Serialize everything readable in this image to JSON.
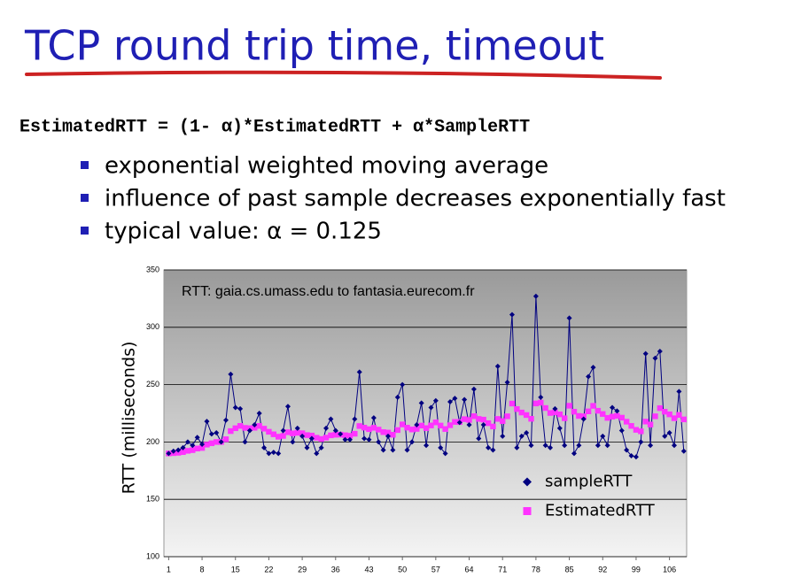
{
  "title": "TCP round trip time, timeout",
  "formula": "EstimatedRTT = (1- α)*EstimatedRTT + α*SampleRTT",
  "bullets": [
    "exponential weighted moving average",
    "influence of past sample decreases exponentially fast",
    "typical value: α  = 0.125"
  ],
  "chart_data": {
    "type": "scatter",
    "annotation": "RTT: gaia.cs.umass.edu to fantasia.eurecom.fr",
    "y_label": "RTT (milliseconds)",
    "x": [
      1,
      2,
      3,
      4,
      5,
      6,
      7,
      8,
      9,
      10,
      11,
      12,
      13,
      14,
      15,
      16,
      17,
      18,
      19,
      20,
      21,
      22,
      23,
      24,
      25,
      26,
      27,
      28,
      29,
      30,
      31,
      32,
      33,
      34,
      35,
      36,
      37,
      38,
      39,
      40,
      41,
      42,
      43,
      44,
      45,
      46,
      47,
      48,
      49,
      50,
      51,
      52,
      53,
      54,
      55,
      56,
      57,
      58,
      59,
      60,
      61,
      62,
      63,
      64,
      65,
      66,
      67,
      68,
      69,
      70,
      71,
      72,
      73,
      74,
      75,
      76,
      77,
      78,
      79,
      80,
      81,
      82,
      83,
      84,
      85,
      86,
      87,
      88,
      89,
      90,
      91,
      92,
      93,
      94,
      95,
      96,
      97,
      98,
      99,
      100,
      101,
      102,
      103,
      104,
      105,
      106,
      107,
      108,
      109
    ],
    "series": [
      {
        "name": "sampleRTT",
        "color": "#000080",
        "marker": "diamond",
        "line": true,
        "values": [
          190,
          192,
          193,
          195,
          200,
          197,
          204,
          198,
          218,
          207,
          208,
          200,
          219,
          259,
          230,
          229,
          200,
          210,
          215,
          225,
          195,
          190,
          191,
          190,
          210,
          231,
          200,
          212,
          205,
          195,
          203,
          190,
          195,
          212,
          220,
          210,
          207,
          202,
          202,
          220,
          261,
          203,
          202,
          221,
          200,
          193,
          205,
          193,
          239,
          250,
          193,
          200,
          215,
          234,
          197,
          230,
          236,
          195,
          190,
          235,
          238,
          217,
          237,
          215,
          246,
          203,
          215,
          195,
          193,
          266,
          205,
          252,
          311,
          195,
          205,
          208,
          197,
          327,
          239,
          197,
          195,
          229,
          212,
          197,
          308,
          190,
          197,
          220,
          257,
          265,
          197,
          205,
          197,
          230,
          227,
          210,
          193,
          188,
          187,
          200,
          277,
          197,
          273,
          279,
          205,
          208,
          197,
          244,
          192
        ]
      },
      {
        "name": "EstimatedRTT",
        "color": "#ff33ff",
        "marker": "square",
        "line": false,
        "values": [
          190,
          190.3,
          190.6,
          191.2,
          192.3,
          192.9,
          194.3,
          194.8,
          197.7,
          198.9,
          200,
          200,
          202.4,
          209.5,
          212,
          214,
          212.3,
          212,
          212.4,
          214,
          211.6,
          208.9,
          206.7,
          204.6,
          205.3,
          208.5,
          207.5,
          208,
          207.6,
          206,
          205.6,
          203.7,
          202.6,
          203.8,
          205.8,
          206.3,
          206.4,
          205.9,
          205.4,
          207.2,
          213.9,
          212.5,
          211.2,
          212.4,
          210.8,
          208.6,
          208.2,
          206.3,
          210.4,
          215.3,
          212.5,
          210.9,
          211.4,
          214.3,
          212.1,
          214.4,
          217.1,
          214.3,
          211.3,
          214.6,
          217.5,
          217.4,
          219.9,
          219.2,
          222.5,
          220.1,
          219.5,
          216.4,
          213.5,
          220.1,
          218.2,
          222.4,
          233.5,
          228.7,
          225.7,
          223.5,
          220.2,
          233.6,
          234.3,
          229.6,
          225.3,
          225.8,
          224.1,
          220.7,
          231.6,
          226.4,
          222.7,
          222.4,
          226.7,
          231.5,
          227.2,
          224.4,
          221,
          222.1,
          222.8,
          221.2,
          217.7,
          214,
          210.6,
          209.3,
          217.8,
          215.2,
          222.4,
          229.5,
          226.4,
          224.1,
          220.7,
          223.6,
          219.7
        ]
      }
    ],
    "xlim": [
      0,
      109.6
    ],
    "xticks": [
      1,
      8,
      15,
      22,
      29,
      36,
      43,
      50,
      57,
      64,
      71,
      78,
      85,
      92,
      99,
      106
    ],
    "ylim": [
      100,
      350
    ],
    "yticks": [
      100,
      150,
      200,
      250,
      300,
      350
    ],
    "grid": true,
    "legend": "lower right"
  }
}
